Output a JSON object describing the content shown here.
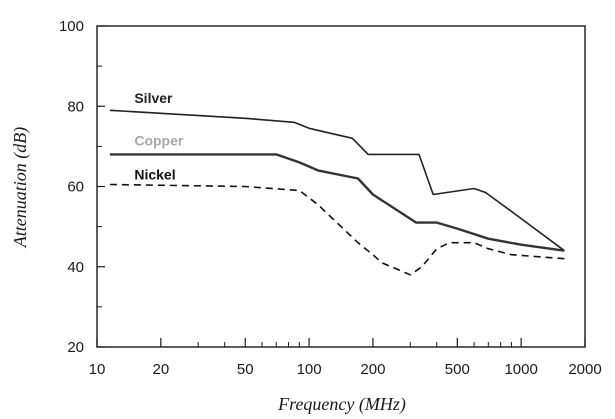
{
  "chart_data": {
    "type": "line",
    "xlabel": "Frequency (MHz)",
    "ylabel": "Attenuation (dB)",
    "xscale": "log",
    "xlim": [
      10,
      2000
    ],
    "ylim": [
      20,
      100
    ],
    "xticks": [
      10,
      20,
      50,
      100,
      200,
      500,
      1000,
      2000
    ],
    "xtick_labels": [
      "10",
      "20",
      "50",
      "100",
      "200",
      "500",
      "1000",
      "2000"
    ],
    "yticks": [
      20,
      40,
      60,
      80,
      100
    ],
    "ytick_labels": [
      "20",
      "40",
      "60",
      "80",
      "100"
    ],
    "grid": false,
    "series": [
      {
        "name": "Silver",
        "line_style": "solid-thin",
        "color": "#222222",
        "x": [
          11.5,
          50,
          85,
          100,
          160,
          190,
          330,
          385,
          600,
          680,
          1000,
          1600
        ],
        "y": [
          79,
          77,
          76,
          74.5,
          72,
          68,
          68,
          58,
          59.5,
          58.5,
          52,
          44
        ]
      },
      {
        "name": "Copper",
        "line_style": "dotted",
        "color": "#333333",
        "x": [
          11.5,
          70,
          90,
          110,
          170,
          200,
          320,
          400,
          500,
          700,
          1000,
          1600
        ],
        "y": [
          68,
          68,
          66,
          64,
          62,
          58,
          51,
          51,
          49.5,
          47,
          45.5,
          44
        ]
      },
      {
        "name": "Nickel",
        "line_style": "dashed",
        "color": "#111111",
        "x": [
          11.5,
          50,
          90,
          110,
          170,
          200,
          220,
          300,
          340,
          400,
          460,
          600,
          700,
          900,
          1200,
          1600
        ],
        "y": [
          60.5,
          60,
          59,
          55.5,
          46,
          43,
          41,
          38,
          40,
          44.5,
          46,
          46,
          44.5,
          43,
          42.5,
          42
        ]
      }
    ],
    "series_labels": [
      {
        "text": "Silver",
        "color": "#222222",
        "at": [
          15,
          82
        ]
      },
      {
        "text": "Copper",
        "color": "#a8a8a8",
        "at": [
          15,
          71.5
        ]
      },
      {
        "text": "Nickel",
        "color": "#111111",
        "at": [
          15,
          63
        ]
      }
    ]
  }
}
